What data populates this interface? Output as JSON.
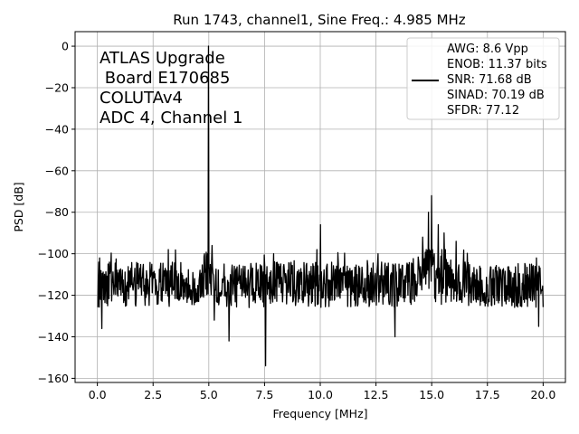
{
  "chart_data": {
    "type": "line",
    "title": "Run 1743, channel1, Sine Freq.: 4.985 MHz",
    "xlabel": "Frequency [MHz]",
    "ylabel": "PSD [dB]",
    "xlim": [
      -1.0,
      21.0
    ],
    "ylim": [
      -162,
      7
    ],
    "grid": true,
    "x_ticks": [
      0.0,
      2.5,
      5.0,
      7.5,
      10.0,
      12.5,
      15.0,
      17.5,
      20.0
    ],
    "x_tick_labels": [
      "0.0",
      "2.5",
      "5.0",
      "7.5",
      "10.0",
      "12.5",
      "15.0",
      "17.5",
      "20.0"
    ],
    "y_ticks": [
      0,
      -20,
      -40,
      -60,
      -80,
      -100,
      -120,
      -140,
      -160
    ],
    "y_tick_labels": [
      "0",
      "−20",
      "−40",
      "−60",
      "−80",
      "−100",
      "−120",
      "−140",
      "−160"
    ],
    "annotation_lines": [
      "ATLAS Upgrade",
      " Board E170685",
      "COLUTAv4",
      "ADC 4, Channel 1"
    ],
    "legend": {
      "placement": "top-right",
      "lines": [
        "AWG: 8.6 Vpp",
        "ENOB: 11.37 bits",
        "SNR: 71.68 dB",
        "SINAD: 70.19 dB",
        "SFDR: 77.12"
      ]
    },
    "series": [
      {
        "color": "#000000",
        "noise_floor_db": -115,
        "noise_range_db": [
          -135,
          -98
        ],
        "x_range": [
          0.0,
          20.0
        ],
        "peaks": [
          {
            "x": 4.985,
            "y": 0
          },
          {
            "x": 5.15,
            "y": -96
          },
          {
            "x": 4.8,
            "y": -100
          },
          {
            "x": 10.0,
            "y": -86
          },
          {
            "x": 9.85,
            "y": -98
          },
          {
            "x": 14.6,
            "y": -92
          },
          {
            "x": 14.85,
            "y": -80
          },
          {
            "x": 15.0,
            "y": -72
          },
          {
            "x": 15.3,
            "y": -86
          },
          {
            "x": 15.55,
            "y": -90
          },
          {
            "x": 16.1,
            "y": -94
          },
          {
            "x": 12.6,
            "y": -100
          },
          {
            "x": 7.9,
            "y": -100
          },
          {
            "x": 0.1,
            "y": -102
          },
          {
            "x": 19.7,
            "y": -102
          }
        ],
        "dips": [
          {
            "x": 7.55,
            "y": -154
          },
          {
            "x": 13.35,
            "y": -140
          },
          {
            "x": 5.9,
            "y": -142
          },
          {
            "x": 0.2,
            "y": -136
          },
          {
            "x": 5.25,
            "y": -132
          },
          {
            "x": 19.8,
            "y": -135
          }
        ]
      }
    ]
  }
}
